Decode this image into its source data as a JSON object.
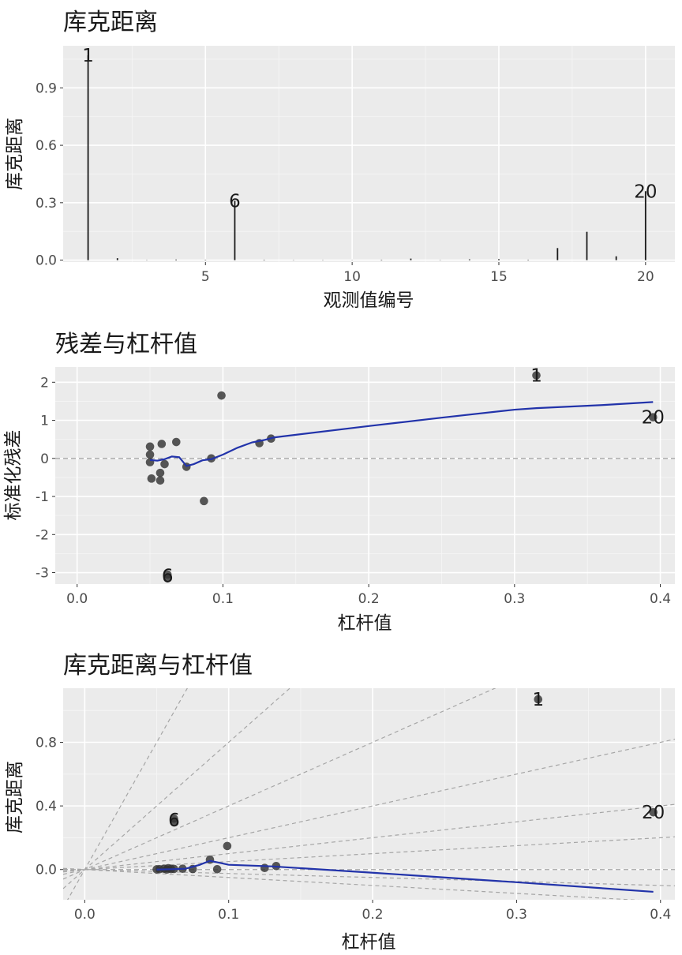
{
  "chart_data": [
    {
      "type": "bar",
      "title": "库克距离",
      "xlabel": "观测值编号",
      "ylabel": "库克距离",
      "xlim": [
        0.15,
        21.0
      ],
      "ylim": [
        -0.01,
        1.12
      ],
      "xticks": [
        5,
        10,
        15,
        20
      ],
      "xtick_labels": [
        "5",
        "10",
        "15",
        "20"
      ],
      "yticks": [
        0.0,
        0.3,
        0.6,
        0.9
      ],
      "ytick_labels": [
        "0.0",
        "0.3",
        "0.6",
        "0.9"
      ],
      "x": [
        1,
        2,
        3,
        4,
        5,
        6,
        7,
        8,
        9,
        10,
        11,
        12,
        13,
        14,
        15,
        16,
        17,
        18,
        19,
        20
      ],
      "values": [
        1.07,
        0.01,
        0.001,
        0.003,
        0.002,
        0.31,
        0.002,
        0.001,
        0.001,
        0.001,
        0.002,
        0.008,
        0.001,
        0.004,
        0.005,
        0.002,
        0.063,
        0.148,
        0.02,
        0.36
      ],
      "labels": [
        {
          "x": 1,
          "text": "1"
        },
        {
          "x": 6,
          "text": "6"
        },
        {
          "x": 20,
          "text": "20"
        }
      ],
      "grid": true
    },
    {
      "type": "scatter",
      "title": "残差与杠杆值",
      "xlabel": "杠杆值",
      "ylabel": "标准化残差",
      "xlim": [
        -0.015,
        0.41
      ],
      "ylim": [
        -3.3,
        2.4
      ],
      "xticks": [
        0.0,
        0.1,
        0.2,
        0.3,
        0.4
      ],
      "xtick_labels": [
        "0.0",
        "0.1",
        "0.2",
        "0.3",
        "0.4"
      ],
      "yticks": [
        -3,
        -2,
        -1,
        0,
        1,
        2
      ],
      "ytick_labels": [
        "-3",
        "-2",
        "-1",
        "0",
        "1",
        "2"
      ],
      "points": [
        [
          0.05,
          0.31
        ],
        [
          0.05,
          0.1
        ],
        [
          0.05,
          -0.1
        ],
        [
          0.051,
          -0.53
        ],
        [
          0.057,
          -0.38
        ],
        [
          0.057,
          -0.58
        ],
        [
          0.058,
          0.38
        ],
        [
          0.06,
          -0.15
        ],
        [
          0.062,
          -3.05
        ],
        [
          0.062,
          -3.15
        ],
        [
          0.068,
          0.43
        ],
        [
          0.075,
          -0.22
        ],
        [
          0.087,
          -1.12
        ],
        [
          0.092,
          0.0
        ],
        [
          0.099,
          1.65
        ],
        [
          0.125,
          0.4
        ],
        [
          0.133,
          0.52
        ],
        [
          0.315,
          2.18
        ],
        [
          0.395,
          1.08
        ]
      ],
      "smooth": [
        [
          0.05,
          -0.04
        ],
        [
          0.055,
          -0.06
        ],
        [
          0.06,
          -0.02
        ],
        [
          0.065,
          0.05
        ],
        [
          0.07,
          0.03
        ],
        [
          0.075,
          -0.2
        ],
        [
          0.08,
          -0.15
        ],
        [
          0.086,
          -0.05
        ],
        [
          0.092,
          -0.02
        ],
        [
          0.1,
          0.1
        ],
        [
          0.11,
          0.28
        ],
        [
          0.12,
          0.42
        ],
        [
          0.128,
          0.48
        ],
        [
          0.135,
          0.55
        ],
        [
          0.2,
          0.85
        ],
        [
          0.25,
          1.07
        ],
        [
          0.3,
          1.28
        ],
        [
          0.315,
          1.32
        ],
        [
          0.36,
          1.4
        ],
        [
          0.395,
          1.48
        ]
      ],
      "reference_line_y": 0,
      "labels": [
        {
          "x": 0.062,
          "y": -3.08,
          "text": "6"
        },
        {
          "x": 0.315,
          "y": 2.18,
          "text": "1"
        },
        {
          "x": 0.395,
          "y": 1.08,
          "text": "20"
        }
      ],
      "smooth_color": "#2233aa",
      "grid": true
    },
    {
      "type": "scatter",
      "title": "库克距离与杠杆值",
      "xlabel": "杠杆值",
      "ylabel": "库克距离",
      "xlim": [
        -0.015,
        0.41
      ],
      "ylim": [
        -0.19,
        1.14
      ],
      "xticks": [
        0.0,
        0.1,
        0.2,
        0.3,
        0.4
      ],
      "xtick_labels": [
        "0.0",
        "0.1",
        "0.2",
        "0.3",
        "0.4"
      ],
      "yticks": [
        0.0,
        0.4,
        0.8
      ],
      "ytick_labels": [
        "0.0",
        "0.4",
        "0.8"
      ],
      "points": [
        [
          0.05,
          0.001
        ],
        [
          0.052,
          0.002
        ],
        [
          0.055,
          0.005
        ],
        [
          0.057,
          0.0
        ],
        [
          0.058,
          0.008
        ],
        [
          0.06,
          0.003
        ],
        [
          0.062,
          0.3
        ],
        [
          0.062,
          0.32
        ],
        [
          0.062,
          0.004
        ],
        [
          0.068,
          0.005
        ],
        [
          0.075,
          0.003
        ],
        [
          0.087,
          0.062
        ],
        [
          0.092,
          0.002
        ],
        [
          0.099,
          0.148
        ],
        [
          0.125,
          0.01
        ],
        [
          0.133,
          0.022
        ],
        [
          0.315,
          1.07
        ],
        [
          0.395,
          0.36
        ]
      ],
      "smooth": [
        [
          0.05,
          0.0
        ],
        [
          0.06,
          0.002
        ],
        [
          0.07,
          0.005
        ],
        [
          0.08,
          0.03
        ],
        [
          0.087,
          0.055
        ],
        [
          0.095,
          0.04
        ],
        [
          0.1,
          0.03
        ],
        [
          0.13,
          0.02
        ],
        [
          0.2,
          -0.02
        ],
        [
          0.3,
          -0.08
        ],
        [
          0.395,
          -0.14
        ]
      ],
      "contour_slopes": [
        -0.5,
        -0.25,
        0.5,
        1,
        2,
        4,
        8,
        16
      ],
      "reference_line_y": 0,
      "labels": [
        {
          "x": 0.062,
          "y": 0.31,
          "text": "6"
        },
        {
          "x": 0.315,
          "y": 1.07,
          "text": "1"
        },
        {
          "x": 0.395,
          "y": 0.36,
          "text": "20"
        }
      ],
      "smooth_color": "#2233aa",
      "grid": true
    }
  ]
}
